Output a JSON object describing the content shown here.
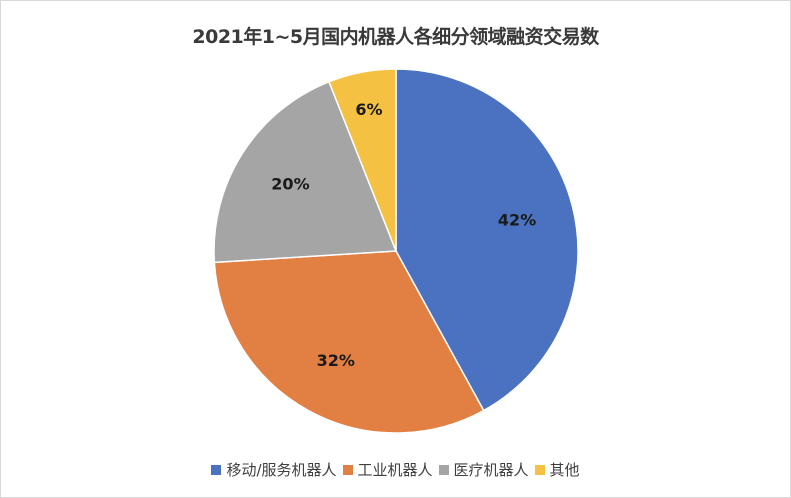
{
  "chart_data": {
    "type": "pie",
    "title": "2021年1~5月国内机器人各细分领域融资交易数",
    "categories": [
      "移动/服务机器人",
      "工业机器人",
      "医疗机器人",
      "其他"
    ],
    "values": [
      42,
      32,
      20,
      6
    ],
    "labels": [
      "42%",
      "32%",
      "20%",
      "6%"
    ],
    "colors": [
      "#4A72C0",
      "#E27F43",
      "#A5A5A5",
      "#F5C142"
    ],
    "legend_position": "bottom"
  }
}
